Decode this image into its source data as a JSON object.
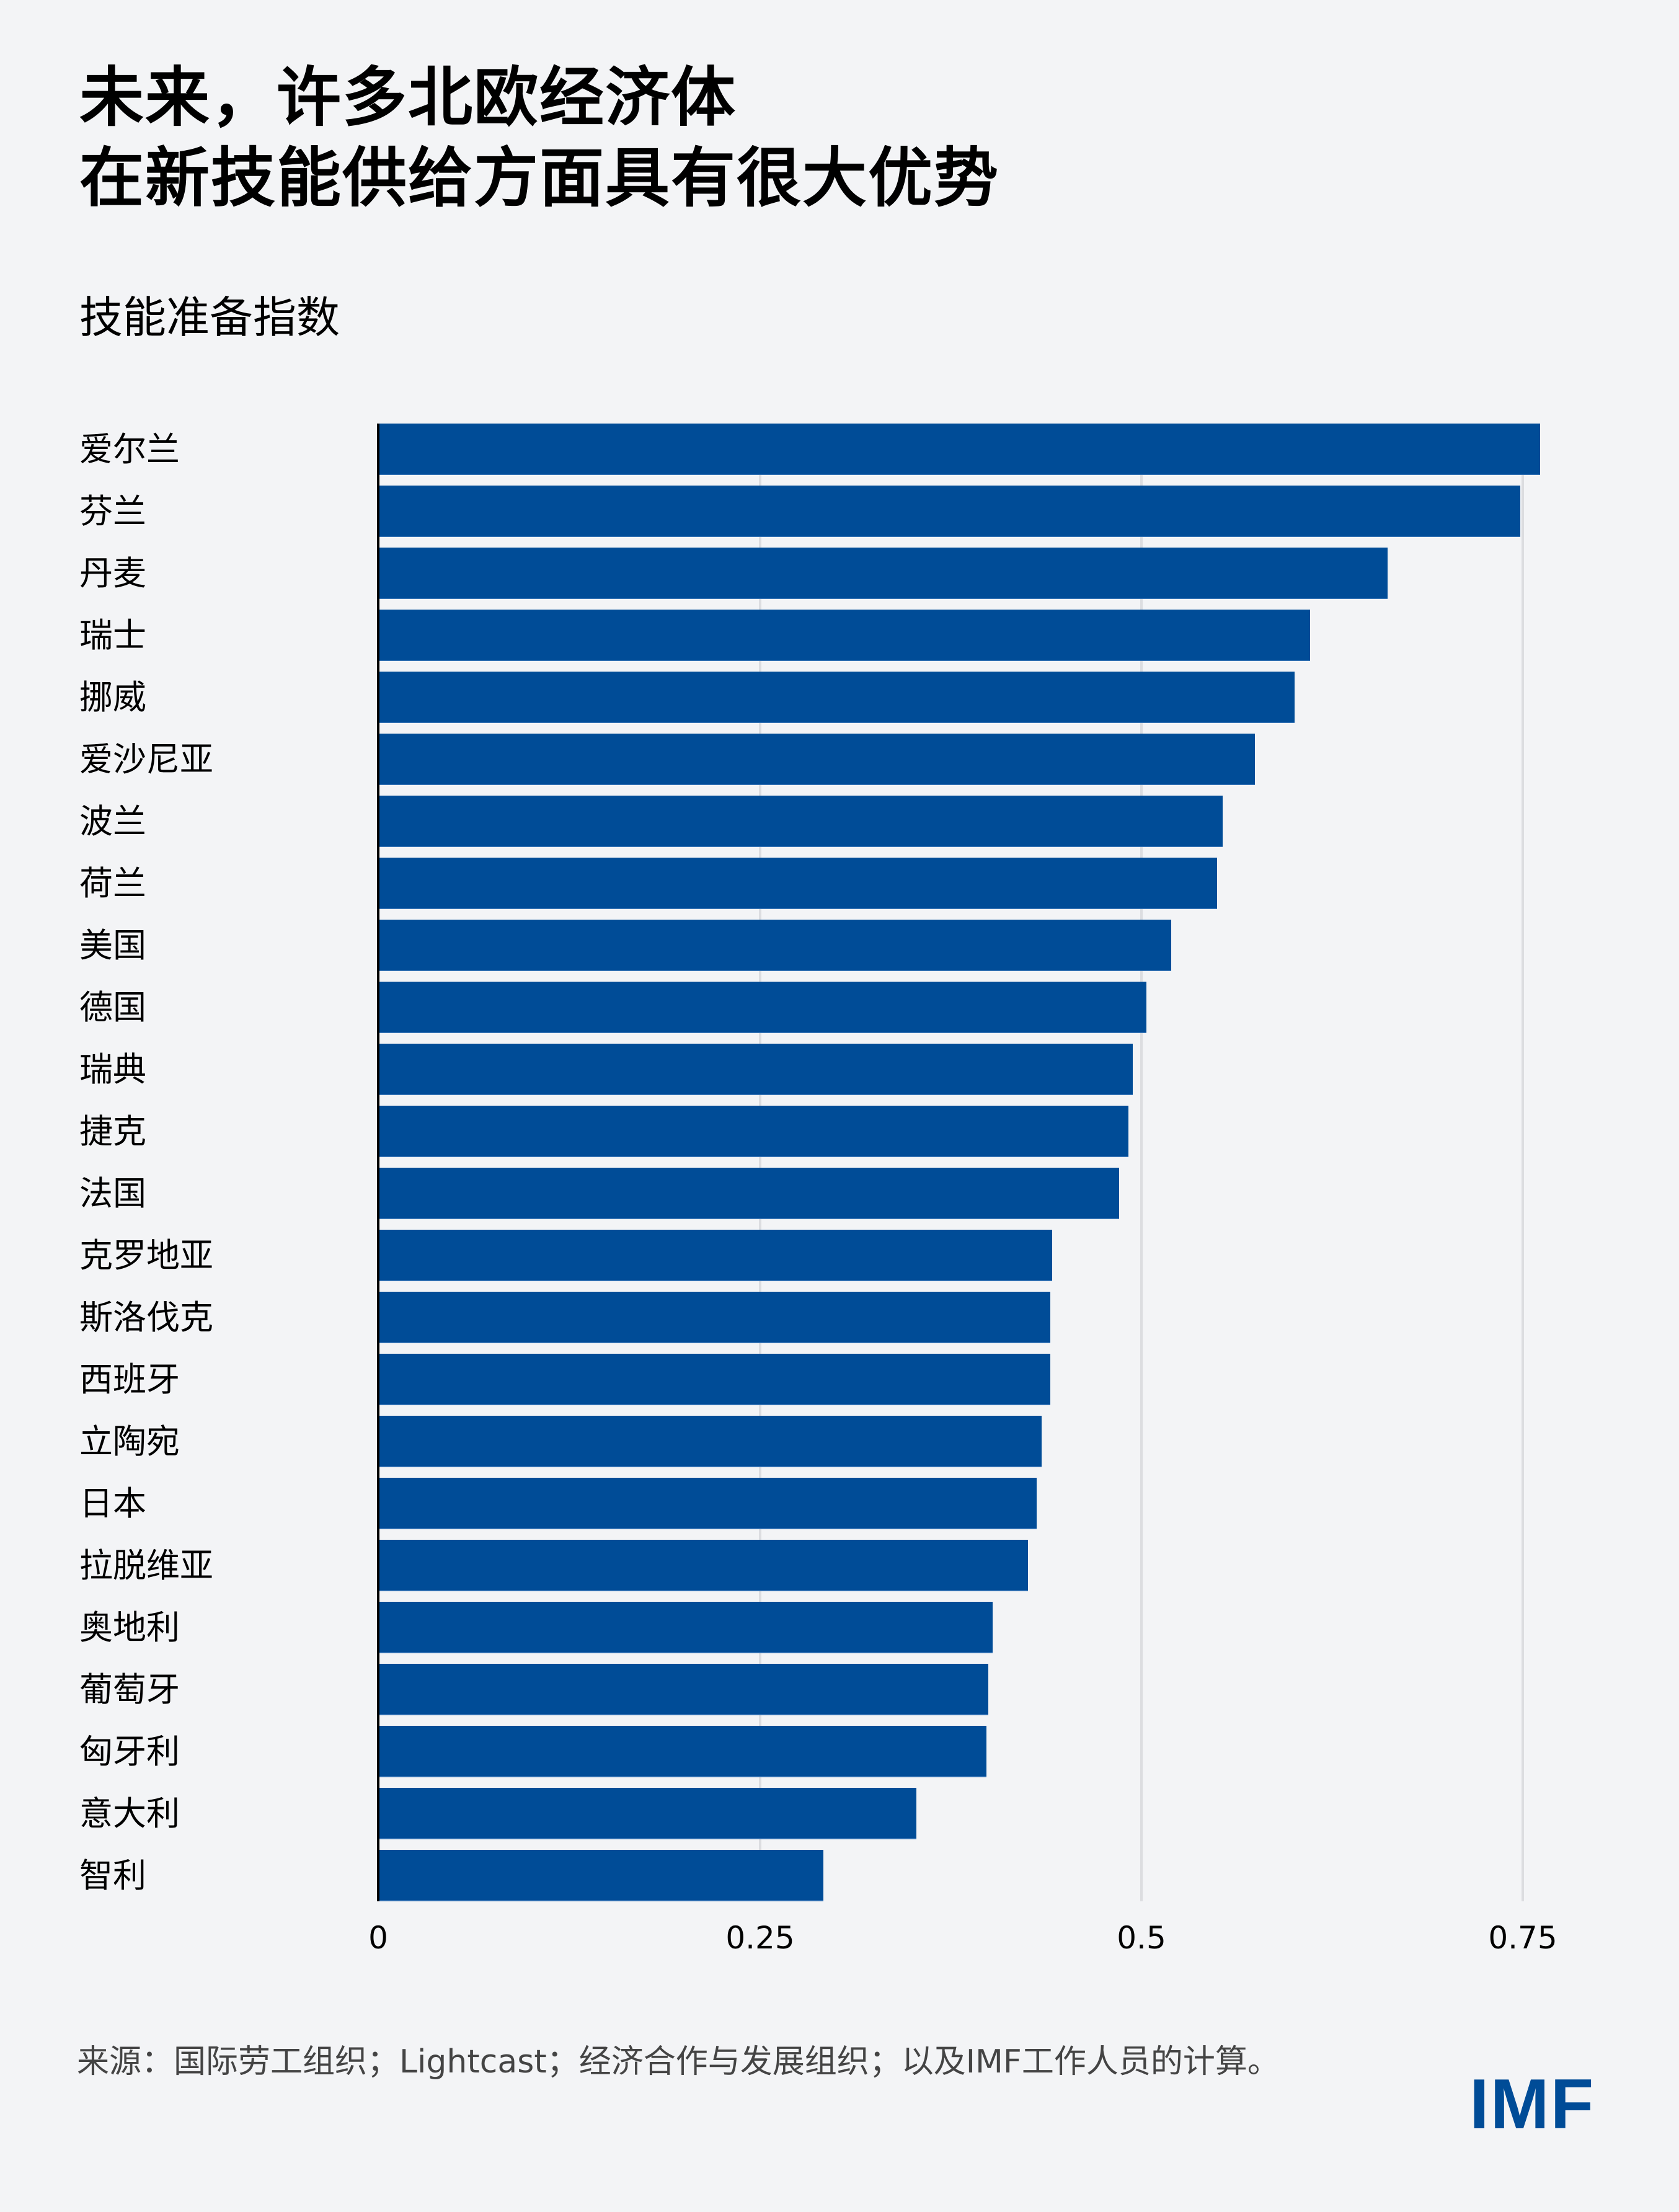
{
  "header": {
    "title_line1": "未来，许多北欧经济体",
    "title_line2": "在新技能供给方面具有很大优势",
    "subtitle": "技能准备指数"
  },
  "axis": {
    "ticks": [
      "0",
      "0.25",
      "0.5",
      "0.75"
    ]
  },
  "footer": {
    "source": "来源：国际劳工组织；Lightcast；经济合作与发展组织；以及IMF工作人员的计算。",
    "logo": "IMF"
  },
  "colors": {
    "bar": "#004c97",
    "background": "#f3f4f6",
    "gridline": "#dcdde0",
    "logo": "#004c97"
  },
  "chart_data": {
    "type": "bar",
    "orientation": "horizontal",
    "title": "未来，许多北欧经济体在新技能供给方面具有很大优势",
    "subtitle": "技能准备指数",
    "xlabel": "",
    "ylabel": "",
    "xlim": [
      0,
      0.8
    ],
    "xticks": [
      0,
      0.25,
      0.5,
      0.75
    ],
    "grid": "vertical",
    "legend": "none",
    "categories": [
      "爱尔兰",
      "芬兰",
      "丹麦",
      "瑞士",
      "挪威",
      "爱沙尼亚",
      "波兰",
      "荷兰",
      "美国",
      "德国",
      "瑞典",
      "捷克",
      "法国",
      "克罗地亚",
      "斯洛伐克",
      "西班牙",
      "立陶宛",
      "日本",
      "拉脱维亚",
      "奥地利",
      "葡萄牙",
      "匈牙利",
      "意大利",
      "智利"
    ],
    "values": [
      0.761,
      0.748,
      0.661,
      0.61,
      0.6,
      0.574,
      0.553,
      0.549,
      0.519,
      0.503,
      0.494,
      0.491,
      0.485,
      0.441,
      0.44,
      0.44,
      0.434,
      0.431,
      0.425,
      0.402,
      0.399,
      0.398,
      0.352,
      0.291
    ]
  }
}
